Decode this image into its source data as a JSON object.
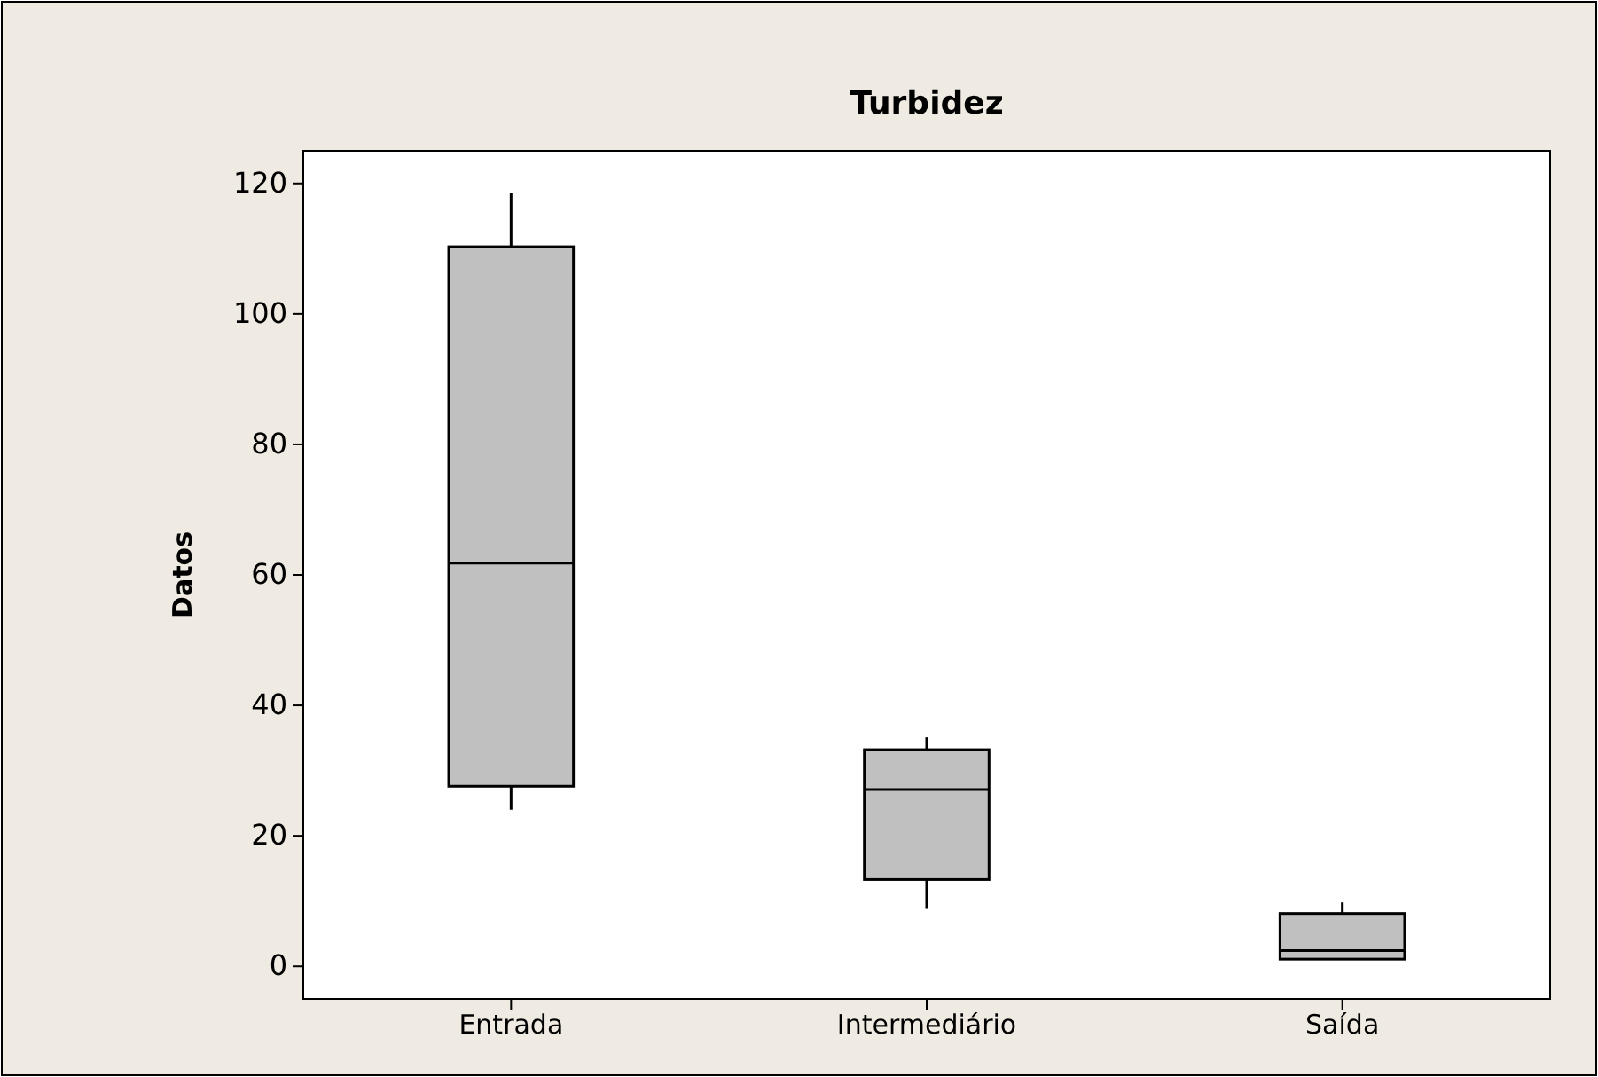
{
  "chart_data": {
    "type": "box",
    "title": "Turbidez",
    "ylabel": "Datos",
    "categories": [
      "Entrada",
      "Intermediário",
      "Saída"
    ],
    "color": "#c0c0c0",
    "ylim": [
      -5,
      125
    ],
    "yticks": [
      0,
      20,
      40,
      60,
      80,
      100,
      120
    ],
    "boxes": [
      {
        "low": 24,
        "q1": 27.6,
        "median": 61.8,
        "q3": 110.3,
        "high": 118.6
      },
      {
        "low": 8.8,
        "q1": 13.3,
        "median": 27.1,
        "q3": 33.2,
        "high": 35.1
      },
      {
        "low": 1.1,
        "q1": 1.1,
        "median": 2.4,
        "q3": 8.1,
        "high": 9.8
      }
    ]
  }
}
